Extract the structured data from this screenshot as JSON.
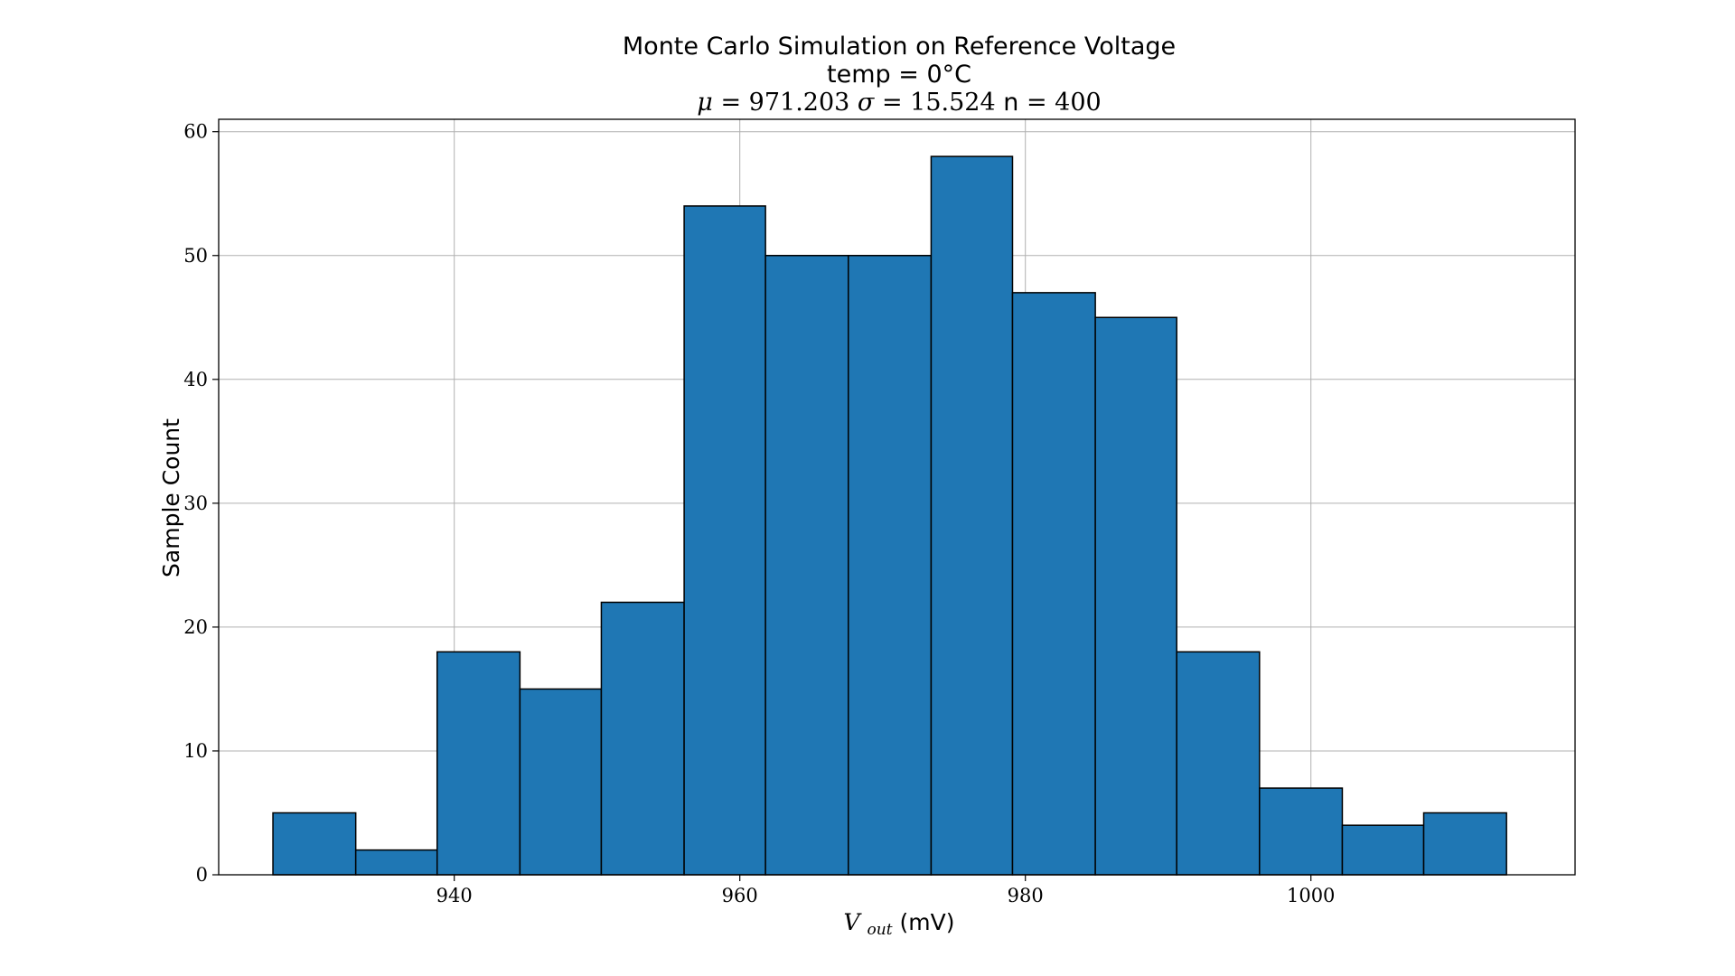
{
  "chart_data": {
    "type": "bar",
    "title": [
      "Monte Carlo Simulation on Reference Voltage",
      "temp = 0°C"
    ],
    "stats": {
      "mu_symbol": "μ",
      "mu_value": "971.203",
      "sigma_symbol": "σ",
      "sigma_value": "15.524",
      "n_label": "n",
      "n_value": "400"
    },
    "xlabel": {
      "symbol": "V",
      "subscript": "out",
      "unit": "(mV)"
    },
    "ylabel": "Sample Count",
    "x_ticks": [
      940,
      960,
      980,
      1000
    ],
    "y_ticks": [
      0,
      10,
      20,
      30,
      40,
      50,
      60
    ],
    "xlim": [
      923.5,
      1018.5
    ],
    "ylim": [
      0,
      61
    ],
    "grid": true,
    "bins": [
      {
        "start": 927.3,
        "end": 933.1,
        "count": 5
      },
      {
        "start": 933.1,
        "end": 938.8,
        "count": 2
      },
      {
        "start": 938.8,
        "end": 944.6,
        "count": 18
      },
      {
        "start": 944.6,
        "end": 950.3,
        "count": 15
      },
      {
        "start": 950.3,
        "end": 956.1,
        "count": 22
      },
      {
        "start": 956.1,
        "end": 961.8,
        "count": 54
      },
      {
        "start": 961.8,
        "end": 967.6,
        "count": 50
      },
      {
        "start": 967.6,
        "end": 973.4,
        "count": 50
      },
      {
        "start": 973.4,
        "end": 979.1,
        "count": 58
      },
      {
        "start": 979.1,
        "end": 984.9,
        "count": 47
      },
      {
        "start": 984.9,
        "end": 990.6,
        "count": 45
      },
      {
        "start": 990.6,
        "end": 996.4,
        "count": 18
      },
      {
        "start": 996.4,
        "end": 1002.2,
        "count": 7
      },
      {
        "start": 1002.2,
        "end": 1007.9,
        "count": 4
      },
      {
        "start": 1007.9,
        "end": 1013.7,
        "count": 5
      }
    ],
    "colors": {
      "bar_fill": "#1f77b4",
      "bar_edge": "#000000",
      "grid": "#b0b0b0",
      "axes": "#000000"
    }
  }
}
